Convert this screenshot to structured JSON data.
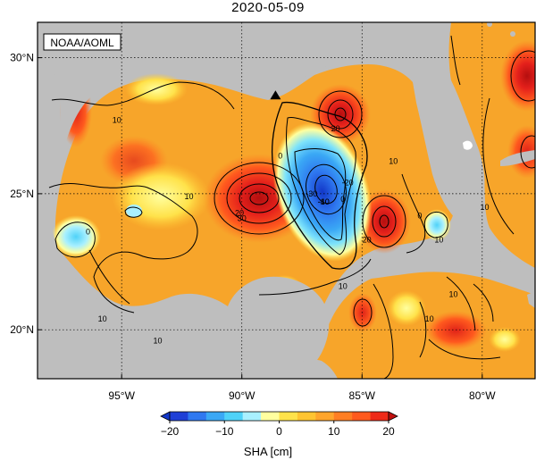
{
  "title": "2020-05-09",
  "credit": "NOAA/AOML",
  "map": {
    "lon_range": [
      -98.5,
      -77.8
    ],
    "lat_range": [
      18.2,
      31.3
    ],
    "lon_ticks": [
      {
        "value": -95,
        "label": "95°W"
      },
      {
        "value": -90,
        "label": "90°W"
      },
      {
        "value": -85,
        "label": "85°W"
      },
      {
        "value": -80,
        "label": "80°W"
      }
    ],
    "lat_ticks": [
      {
        "value": 30,
        "label": "30°N"
      },
      {
        "value": 25,
        "label": "25°N"
      },
      {
        "value": 20,
        "label": "20°N"
      }
    ],
    "land_color": "#bebebe",
    "ocean_base_color": "#f5a623",
    "contour_labels": [
      {
        "text": "10",
        "lon": -92.2,
        "lat": 24.8
      },
      {
        "text": "10",
        "lon": -95.2,
        "lat": 27.6
      },
      {
        "text": "10",
        "lon": -93.5,
        "lat": 19.5
      },
      {
        "text": "10",
        "lon": -85.8,
        "lat": 21.5
      },
      {
        "text": "10",
        "lon": -81.8,
        "lat": 23.2
      },
      {
        "text": "10",
        "lon": -83.7,
        "lat": 26.1
      },
      {
        "text": "10",
        "lon": -79.9,
        "lat": 24.4
      },
      {
        "text": "10",
        "lon": -95.8,
        "lat": 20.3
      },
      {
        "text": "20",
        "lon": -90.1,
        "lat": 24.2
      },
      {
        "text": "20",
        "lon": -84.8,
        "lat": 23.2
      },
      {
        "text": "20",
        "lon": -86.1,
        "lat": 27.3
      },
      {
        "text": "30",
        "lon": -90.0,
        "lat": 24.0
      },
      {
        "text": "0",
        "lon": -88.4,
        "lat": 26.3
      },
      {
        "text": "0",
        "lon": -85.8,
        "lat": 24.7
      },
      {
        "text": "-10",
        "lon": -86.6,
        "lat": 24.6
      },
      {
        "text": "-20",
        "lon": -85.6,
        "lat": 25.3
      },
      {
        "text": "-30",
        "lon": -87.1,
        "lat": 24.9
      },
      {
        "text": "-40",
        "lon": -86.6,
        "lat": 24.6
      },
      {
        "text": "0",
        "lon": -82.6,
        "lat": 24.1
      },
      {
        "text": "0",
        "lon": -96.4,
        "lat": 23.5
      },
      {
        "text": "10",
        "lon": -81.2,
        "lat": 21.2
      },
      {
        "text": "10",
        "lon": -82.2,
        "lat": 20.3
      }
    ],
    "features": [
      {
        "type": "warm_eddy",
        "lon": -90.1,
        "lat": 24.8,
        "peak": 30
      },
      {
        "type": "cold_eddy",
        "lon": -86.6,
        "lat": 25.1,
        "peak": -40
      },
      {
        "type": "warm_eddy",
        "lon": -86.1,
        "lat": 27.8,
        "peak": 25
      },
      {
        "type": "warm_eddy",
        "lon": -84.3,
        "lat": 23.9,
        "peak": 25
      },
      {
        "type": "cold_eddy",
        "lon": -96.3,
        "lat": 23.5,
        "peak": -5
      },
      {
        "type": "cold_eddy",
        "lon": -82.3,
        "lat": 24.0,
        "peak": 0
      },
      {
        "type": "station_marker",
        "lon": -88.6,
        "lat": 28.6
      }
    ]
  },
  "colorbar": {
    "ticks": [
      "−20",
      "−10",
      "0",
      "10",
      "20"
    ],
    "label": "SHA [cm]",
    "colors": [
      "#1f3fd6",
      "#2f78f0",
      "#3aa8f5",
      "#4fd2f8",
      "#a9f0ff",
      "#ffff9f",
      "#ffe24a",
      "#ffc431",
      "#ffa52c",
      "#ff7e23",
      "#ff5a1e",
      "#ee2a18"
    ]
  }
}
